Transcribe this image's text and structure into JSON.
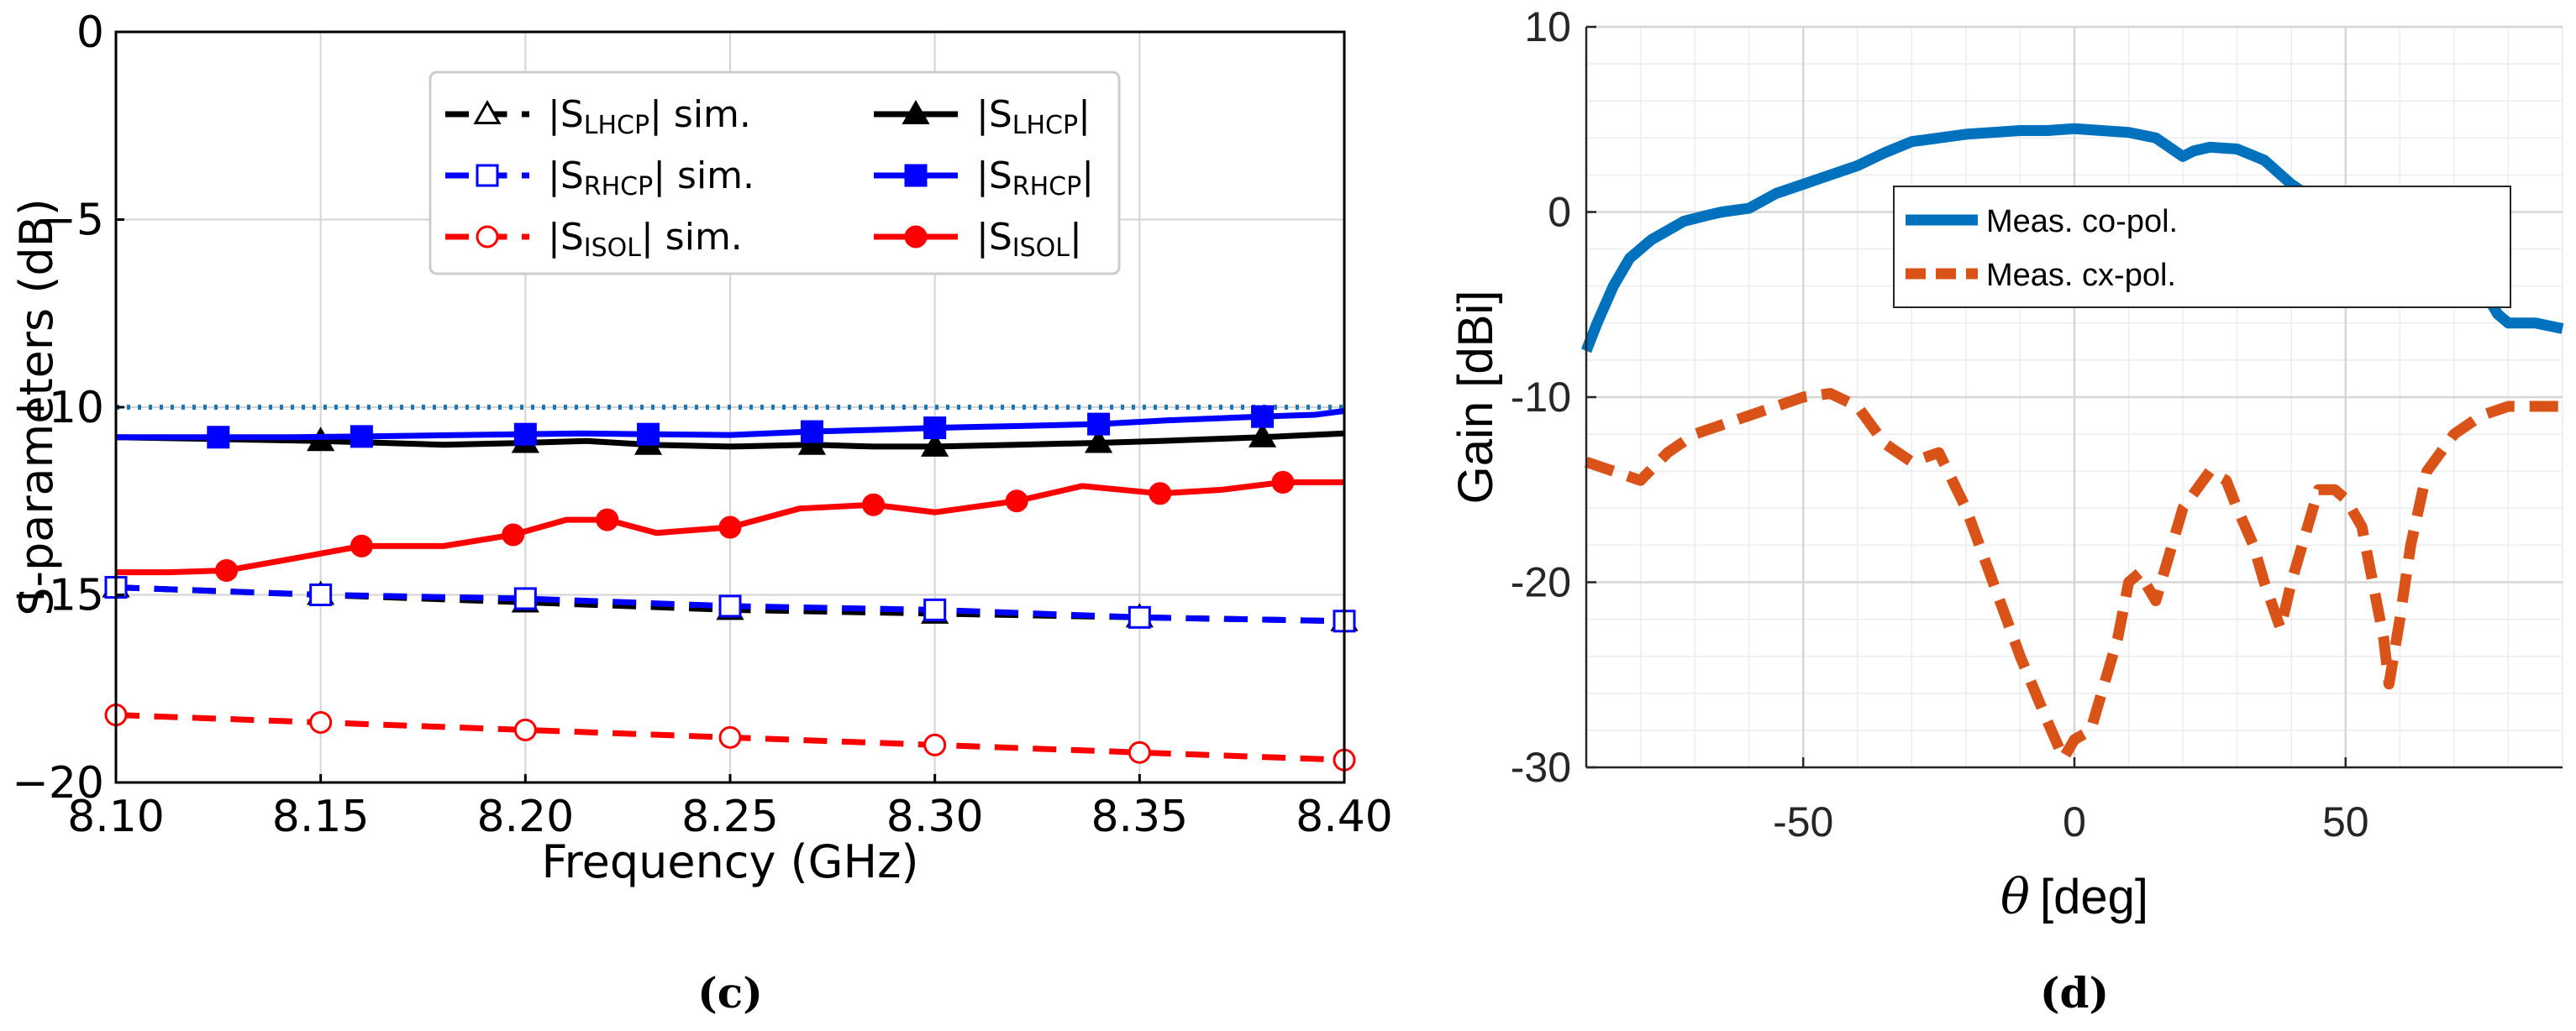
{
  "chart_data": [
    {
      "panel_label": "(c)",
      "type": "line",
      "xlabel": "Frequency (GHz)",
      "ylabel": "S-parameters (dB)",
      "xlim": [
        8.1,
        8.4
      ],
      "ylim": [
        -20,
        0
      ],
      "xticks": [
        "8.10",
        "8.15",
        "8.20",
        "8.25",
        "8.30",
        "8.35",
        "8.40"
      ],
      "yticks": [
        "0",
        "−5",
        "−10",
        "−15",
        "−20"
      ],
      "grid": true,
      "legend_position": "top-center",
      "reference_line": {
        "y": -10,
        "style": "dotted",
        "color": "#1f77b4"
      },
      "series": [
        {
          "name_parts": [
            "|S",
            "LHCP",
            "| sim."
          ],
          "color": "#000000",
          "dash": "dashed",
          "marker": "triangle-open",
          "x": [
            8.1,
            8.15,
            8.2,
            8.25,
            8.3,
            8.35,
            8.4
          ],
          "y": [
            -14.8,
            -15.0,
            -15.2,
            -15.4,
            -15.5,
            -15.6,
            -15.7
          ]
        },
        {
          "name_parts": [
            "|S",
            "RHCP",
            "| sim."
          ],
          "color": "#0000ff",
          "dash": "dashed",
          "marker": "square-open",
          "x": [
            8.1,
            8.15,
            8.2,
            8.25,
            8.3,
            8.35,
            8.4
          ],
          "y": [
            -14.8,
            -15.0,
            -15.1,
            -15.3,
            -15.4,
            -15.6,
            -15.7
          ]
        },
        {
          "name_parts": [
            "|S",
            "ISOL",
            "|  sim."
          ],
          "color": "#ff0000",
          "dash": "dashed",
          "marker": "circle-open",
          "x": [
            8.1,
            8.15,
            8.2,
            8.25,
            8.3,
            8.35,
            8.4
          ],
          "y": [
            -18.2,
            -18.4,
            -18.6,
            -18.8,
            -19.0,
            -19.2,
            -19.4
          ]
        },
        {
          "name_parts": [
            "|S",
            "LHCP",
            "|"
          ],
          "color": "#000000",
          "dash": "solid",
          "marker": "triangle-filled",
          "x": [
            8.1,
            8.125,
            8.15,
            8.18,
            8.2,
            8.215,
            8.23,
            8.25,
            8.27,
            8.285,
            8.3,
            8.32,
            8.34,
            8.355,
            8.38,
            8.4
          ],
          "y": [
            -10.8,
            -10.85,
            -10.9,
            -11.0,
            -10.95,
            -10.9,
            -11.0,
            -11.05,
            -11.0,
            -11.05,
            -11.05,
            -11.0,
            -10.95,
            -10.9,
            -10.8,
            -10.7
          ]
        },
        {
          "name_parts": [
            "|S",
            "RHCP",
            "|"
          ],
          "color": "#0000ff",
          "dash": "solid",
          "marker": "square-filled",
          "x": [
            8.1,
            8.107,
            8.125,
            8.143,
            8.16,
            8.179,
            8.2,
            8.214,
            8.23,
            8.25,
            8.27,
            8.286,
            8.3,
            8.321,
            8.34,
            8.357,
            8.38,
            8.393,
            8.4
          ],
          "y": [
            -10.8,
            -10.8,
            -10.8,
            -10.8,
            -10.78,
            -10.75,
            -10.72,
            -10.7,
            -10.72,
            -10.74,
            -10.65,
            -10.6,
            -10.55,
            -10.5,
            -10.45,
            -10.35,
            -10.25,
            -10.2,
            -10.1
          ]
        },
        {
          "name_parts": [
            "|S",
            "ISOL",
            "|"
          ],
          "color": "#ff0000",
          "dash": "solid",
          "marker": "circle-filled",
          "x": [
            8.1,
            8.113,
            8.127,
            8.145,
            8.16,
            8.18,
            8.197,
            8.21,
            8.22,
            8.232,
            8.25,
            8.267,
            8.285,
            8.3,
            8.32,
            8.336,
            8.355,
            8.37,
            8.385,
            8.4
          ],
          "y": [
            -14.4,
            -14.4,
            -14.35,
            -14.0,
            -13.7,
            -13.7,
            -13.4,
            -13.0,
            -13.0,
            -13.35,
            -13.2,
            -12.7,
            -12.6,
            -12.8,
            -12.5,
            -12.1,
            -12.3,
            -12.2,
            -12.0,
            -12.0
          ]
        }
      ]
    },
    {
      "panel_label": "(d)",
      "type": "line",
      "xlabel_symbol": "θ",
      "xlabel_unit": "[deg]",
      "ylabel": "Gain [dBi]",
      "xlim": [
        -90,
        90
      ],
      "ylim": [
        -30,
        10
      ],
      "xticks": [
        "-50",
        "0",
        "50"
      ],
      "yticks": [
        "10",
        "0",
        "-10",
        "-20",
        "-30"
      ],
      "grid": true,
      "minor_grid": true,
      "legend_position": "center",
      "series": [
        {
          "name": "Meas. co-pol.",
          "color": "#0072bd",
          "dash": "solid",
          "x": [
            -90,
            -88,
            -85,
            -82,
            -78,
            -75,
            -72,
            -68,
            -65,
            -60,
            -55,
            -50,
            -45,
            -40,
            -35,
            -30,
            -25,
            -20,
            -15,
            -10,
            -5,
            0,
            5,
            10,
            15,
            20,
            22,
            25,
            30,
            35,
            40,
            45,
            50,
            55,
            58,
            62,
            65,
            70,
            75,
            78,
            80,
            85,
            90
          ],
          "y": [
            -7.5,
            -6.0,
            -4.0,
            -2.5,
            -1.5,
            -1.0,
            -0.5,
            -0.2,
            0.0,
            0.2,
            1.0,
            1.5,
            2.0,
            2.5,
            3.2,
            3.8,
            4.0,
            4.2,
            4.3,
            4.4,
            4.4,
            4.5,
            4.4,
            4.3,
            4.0,
            3.0,
            3.3,
            3.5,
            3.4,
            2.8,
            1.5,
            0.5,
            -0.5,
            -1.2,
            -1.0,
            -1.0,
            -1.2,
            -2.5,
            -4.0,
            -5.5,
            -6.0,
            -6.0,
            -6.3
          ]
        },
        {
          "name": "Meas. cx-pol.",
          "color": "#d95319",
          "dash": "dashed",
          "x": [
            -90,
            -85,
            -80,
            -75,
            -70,
            -65,
            -60,
            -55,
            -50,
            -45,
            -40,
            -35,
            -30,
            -25,
            -20,
            -15,
            -10,
            -5,
            -2,
            0,
            3,
            5,
            8,
            10,
            12,
            15,
            18,
            20,
            25,
            28,
            30,
            33,
            35,
            38,
            40,
            43,
            45,
            48,
            50,
            53,
            55,
            57,
            58,
            60,
            62,
            65,
            70,
            75,
            80,
            85,
            90
          ],
          "y": [
            -13.5,
            -14.0,
            -14.5,
            -13.0,
            -12.0,
            -11.5,
            -11.0,
            -10.5,
            -10.0,
            -9.8,
            -10.5,
            -12.5,
            -13.5,
            -13.0,
            -16.0,
            -20.0,
            -24.0,
            -27.5,
            -29.5,
            -28.5,
            -28.0,
            -26.0,
            -23.0,
            -20.0,
            -19.5,
            -21.0,
            -18.0,
            -16.0,
            -14.0,
            -14.5,
            -16.0,
            -18.0,
            -20.0,
            -22.5,
            -20.0,
            -17.0,
            -15.0,
            -15.0,
            -15.5,
            -17.0,
            -20.0,
            -23.0,
            -25.5,
            -22.0,
            -18.0,
            -14.0,
            -12.0,
            -11.0,
            -10.5,
            -10.5,
            -10.5
          ]
        }
      ]
    }
  ]
}
